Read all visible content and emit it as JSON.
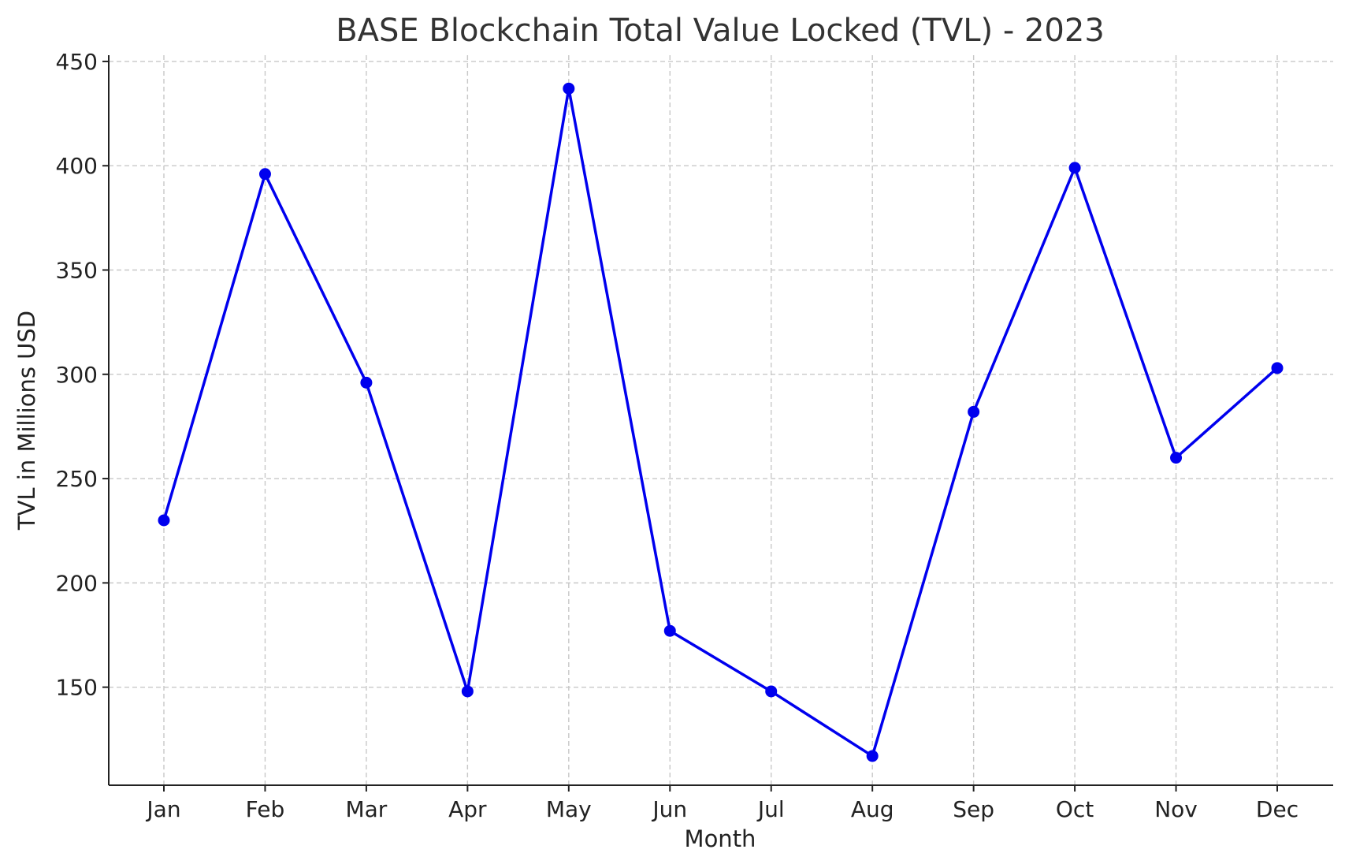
{
  "chart_data": {
    "type": "line",
    "title": "BASE Blockchain Total Value Locked (TVL) - 2023",
    "xlabel": "Month",
    "ylabel": "TVL in Millions USD",
    "categories": [
      "Jan",
      "Feb",
      "Mar",
      "Apr",
      "May",
      "Jun",
      "Jul",
      "Aug",
      "Sep",
      "Oct",
      "Nov",
      "Dec"
    ],
    "series": [
      {
        "values": [
          230,
          396,
          296,
          148,
          437,
          177,
          148,
          117,
          282,
          399,
          260,
          303
        ],
        "color": "#0000ee",
        "marker": "circle"
      }
    ],
    "yticks": [
      150,
      200,
      250,
      300,
      350,
      400,
      450
    ],
    "ylim": [
      103,
      453
    ],
    "grid": true,
    "legend": "none"
  }
}
